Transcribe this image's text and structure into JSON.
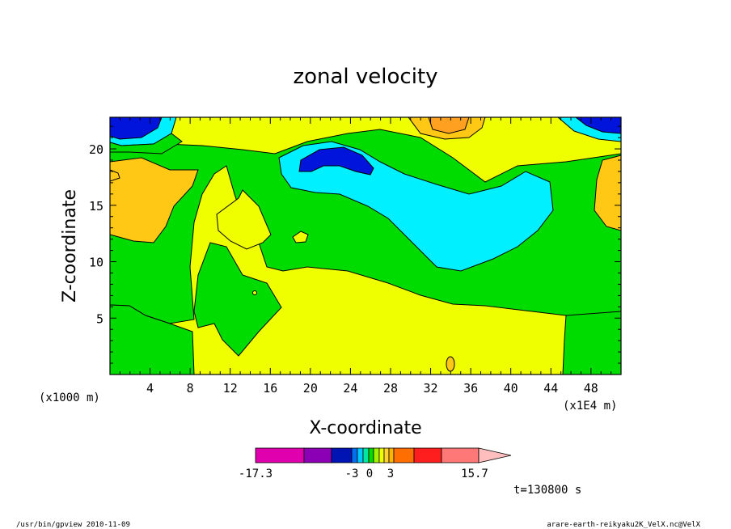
{
  "chart_data": {
    "type": "heatmap",
    "title": "zonal velocity",
    "xlabel": "X-coordinate",
    "ylabel": "Z-coordinate",
    "x_unit_left": "(x1000 m)",
    "x_unit_right": "(x1E4 m)",
    "xlim": [
      0,
      51
    ],
    "ylim": [
      0,
      22.8
    ],
    "x_ticks": [
      "4",
      "8",
      "12",
      "16",
      "20",
      "24",
      "28",
      "32",
      "36",
      "40",
      "44",
      "48"
    ],
    "y_ticks": [
      "5",
      "10",
      "15",
      "20"
    ],
    "colorbar": {
      "colors": [
        "#e100ad",
        "#8c00b5",
        "#0014b4",
        "#006ef0",
        "#00c8ff",
        "#00e6a0",
        "#00dc00",
        "#a0f000",
        "#f0ff00",
        "#ffd232",
        "#ffb400",
        "#ff6e00",
        "#ff1e1e",
        "#ff7878",
        "#ffbebe"
      ],
      "tick_labels": [
        "-17.3",
        "-3",
        "0",
        "3",
        "15.7"
      ]
    },
    "time_label": "t=130800 s",
    "colors": {
      "background_field": "#f0ff00",
      "green": "#00dc00",
      "cyan": "#00f0ff",
      "blue": "#0014dc",
      "orange": "#ffc814"
    }
  },
  "footer": {
    "left": "/usr/bin/gpview   2010-11-09",
    "right": "arare-earth-reikyaku2K_VelX.nc@VelX"
  }
}
